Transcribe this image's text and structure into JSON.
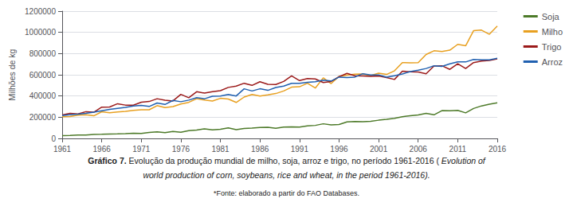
{
  "chart_data": {
    "type": "line",
    "y_label": "Milhões de kg",
    "x": [
      1961,
      1962,
      1963,
      1964,
      1965,
      1966,
      1967,
      1968,
      1969,
      1970,
      1971,
      1972,
      1973,
      1974,
      1975,
      1976,
      1977,
      1978,
      1979,
      1980,
      1981,
      1982,
      1983,
      1984,
      1985,
      1986,
      1987,
      1988,
      1989,
      1990,
      1991,
      1992,
      1993,
      1994,
      1995,
      1996,
      1997,
      1998,
      1999,
      2000,
      2001,
      2002,
      2003,
      2004,
      2005,
      2006,
      2007,
      2008,
      2009,
      2010,
      2011,
      2012,
      2013,
      2014,
      2015,
      2016
    ],
    "series": [
      {
        "name": "Soja",
        "color": "#4d7a29",
        "values": [
          26900,
          28700,
          31700,
          31800,
          37300,
          38700,
          41200,
          42700,
          44900,
          48400,
          47500,
          57000,
          61100,
          55000,
          65300,
          58600,
          72700,
          78200,
          90700,
          80900,
          86100,
          99800,
          83300,
          93500,
          97200,
          102500,
          104200,
          96200,
          107300,
          108400,
          107700,
          117300,
          122800,
          137800,
          126700,
          131900,
          155600,
          160200,
          157200,
          161400,
          171600,
          180200,
          189700,
          204300,
          214000,
          222000,
          236100,
          222400,
          261600,
          261400,
          263700,
          241000,
          282300,
          306300,
          323200,
          334800
        ]
      },
      {
        "name": "Milho",
        "color": "#e8a020",
        "values": [
          205000,
          207000,
          219000,
          224000,
          213000,
          251000,
          241000,
          250000,
          255000,
          265000,
          270000,
          270000,
          309000,
          290000,
          300000,
          325000,
          340000,
          374000,
          362000,
          353000,
          378000,
          371000,
          339000,
          390000,
          415000,
          400000,
          410000,
          423000,
          447000,
          483000,
          487000,
          520000,
          475000,
          571000,
          517000,
          585000,
          596000,
          606000,
          607000,
          592000,
          615000,
          603000,
          637000,
          715000,
          713000,
          714000,
          791000,
          826000,
          820000,
          832000,
          887000,
          873000,
          1016000,
          1021000,
          982000,
          1060000
        ]
      },
      {
        "name": "Trigo",
        "color": "#9b1a1a",
        "values": [
          222000,
          236000,
          230000,
          252000,
          247000,
          295000,
          296000,
          327000,
          314000,
          313000,
          341000,
          348000,
          374000,
          360000,
          353000,
          415000,
          383000,
          440000,
          427000,
          440000,
          450000,
          481000,
          493000,
          520000,
          500000,
          534000,
          510000,
          508000,
          537000,
          589000,
          545000,
          565000,
          561000,
          527000,
          537000,
          582000,
          613000,
          591000,
          588000,
          585000,
          589000,
          573000,
          556000,
          633000,
          629000,
          626000,
          609000,
          683000,
          685000,
          651000,
          704000,
          659000,
          715000,
          729000,
          735000,
          750000
        ]
      },
      {
        "name": "Arroz",
        "color": "#2060b0",
        "values": [
          215000,
          224000,
          228000,
          236000,
          247000,
          260000,
          273000,
          283000,
          292000,
          305000,
          312000,
          301000,
          334000,
          320000,
          358000,
          346000,
          361000,
          385000,
          374000,
          397000,
          399000,
          414000,
          400000,
          468000,
          447000,
          468000,
          453000,
          480000,
          493000,
          519000,
          520000,
          529000,
          535000,
          550000,
          541000,
          578000,
          574000,
          578000,
          610000,
          599000,
          599000,
          577000,
          591000,
          608000,
          630000,
          643000,
          659000,
          685000,
          679000,
          703000,
          722000,
          721000,
          745000,
          741000,
          741000,
          755000
        ]
      }
    ],
    "xlim": [
      1961,
      2016
    ],
    "xticks": [
      1961,
      1966,
      1971,
      1976,
      1981,
      1986,
      1991,
      1996,
      2001,
      2006,
      2011,
      2016
    ],
    "ylim": [
      0,
      1200000
    ],
    "yticks": [
      0,
      200000,
      400000,
      600000,
      800000,
      1000000,
      1200000
    ],
    "grid": true,
    "legend": "right",
    "annotations": [
      "Gráfico 7.",
      "Evolução da produção mundial de milho, soja, arroz e trigo, no período 1961-2016 (",
      "Evolution of",
      "world production of corn, soybeans, rice and wheat, in the period 1961-2016).",
      "*Fonte: elaborado a partir do FAO Databases."
    ]
  }
}
